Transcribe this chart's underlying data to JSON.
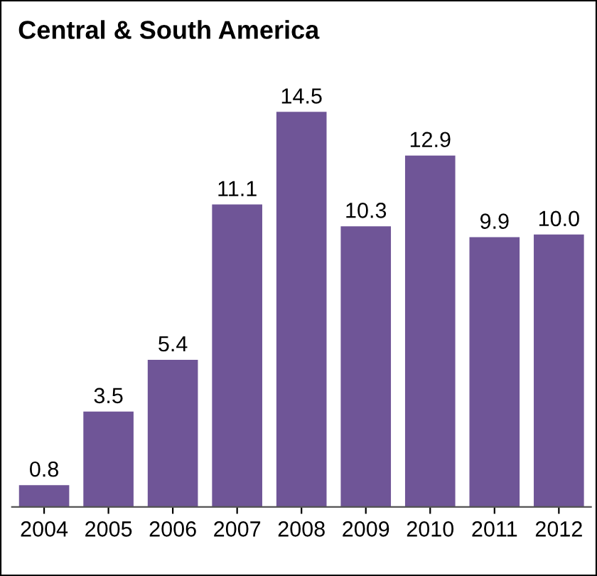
{
  "chart_data": {
    "type": "bar",
    "title": "Central & South America",
    "categories": [
      "2004",
      "2005",
      "2006",
      "2007",
      "2008",
      "2009",
      "2010",
      "2011",
      "2012"
    ],
    "values": [
      0.8,
      3.5,
      5.4,
      11.1,
      14.5,
      10.3,
      12.9,
      9.9,
      10.0
    ],
    "value_labels": [
      "0.8",
      "3.5",
      "5.4",
      "11.1",
      "14.5",
      "10.3",
      "12.9",
      "9.9",
      "10.0"
    ],
    "color": "#6f5597",
    "grid": false,
    "legend": false
  }
}
